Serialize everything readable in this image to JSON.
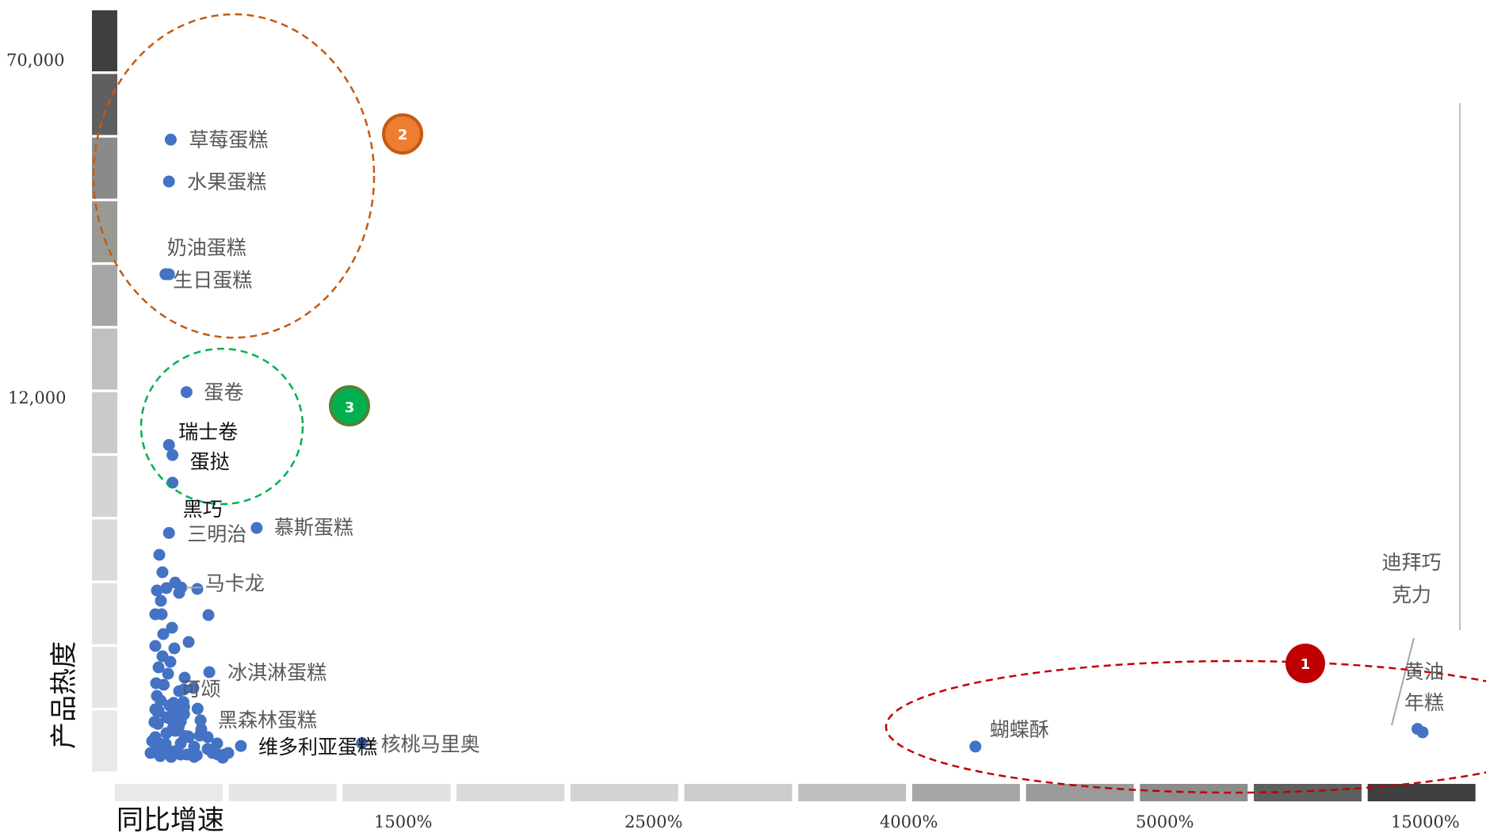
{
  "chart_data": {
    "type": "scatter",
    "xlabel": "同比增速",
    "ylabel": "产品热度",
    "x_ticks": [
      "1500%",
      "2500%",
      "4000%",
      "5000%",
      "15000%"
    ],
    "y_ticks": [
      "70,000",
      "12,000"
    ],
    "labeled_points": [
      {
        "name": "草莓蛋糕",
        "x": 160,
        "y": 57000
      },
      {
        "name": "水果蛋糕",
        "x": 150,
        "y": 50000
      },
      {
        "name": "奶油蛋糕",
        "x": 130,
        "y": 34500
      },
      {
        "name": "生日蛋糕",
        "x": 150,
        "y": 34500
      },
      {
        "name": "蛋卷",
        "x": 250,
        "y": 12500
      },
      {
        "name": "瑞士卷",
        "x": 150,
        "y": 10000
      },
      {
        "name": "蛋挞",
        "x": 170,
        "y": 9600
      },
      {
        "name": "黑巧",
        "x": 170,
        "y": 8500
      },
      {
        "name": "三明治",
        "x": 150,
        "y": 6500
      },
      {
        "name": "慕斯蛋糕",
        "x": 650,
        "y": 6700
      },
      {
        "name": "马卡龙",
        "x": 220,
        "y": 4600
      },
      {
        "name": "冰淇淋蛋糕",
        "x": 380,
        "y": 2600
      },
      {
        "name": "可颂",
        "x": 120,
        "y": 2300
      },
      {
        "name": "黑森林蛋糕",
        "x": 330,
        "y": 1200
      },
      {
        "name": "维多利亚蛋糕",
        "x": 560,
        "y": 300
      },
      {
        "name": "核桃马里奥",
        "x": 1250,
        "y": 400
      },
      {
        "name": "蝴蝶酥",
        "x": 4250,
        "y": 280
      },
      {
        "name": "迪拜巧克力",
        "x": 14800,
        "y": 900
      },
      {
        "name": "黄油年糕",
        "x": 15000,
        "y": 780
      }
    ],
    "annotations": [
      {
        "id": "1",
        "color": "#c00000"
      },
      {
        "id": "2",
        "color": "#ed7d31"
      },
      {
        "id": "3",
        "color": "#00b050"
      }
    ]
  }
}
